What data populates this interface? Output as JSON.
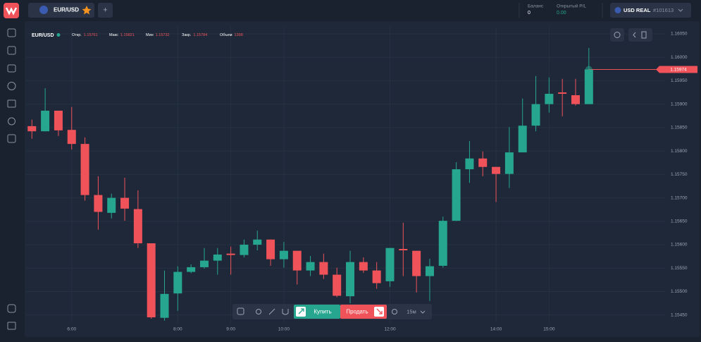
{
  "header": {
    "pair": "EUR/USD",
    "add": "+",
    "balance_label": "Баланс",
    "balance": "0",
    "pl_label": "Открытый P/L",
    "pl": "0.00",
    "currency": "USD REAL",
    "account": "#101613"
  },
  "chart_data": {
    "type": "candlestick",
    "symbol": "EUR/USD",
    "legend": [
      {
        "label": "Откр.",
        "value": "1.15761"
      },
      {
        "label": "Макс",
        "value": "1.15821"
      },
      {
        "label": "Мин",
        "value": "1.15732"
      },
      {
        "label": "Закр.",
        "value": "1.15784"
      },
      {
        "label": "Объем",
        "value": "1398"
      }
    ],
    "x": [
      5.25,
      5.5,
      5.75,
      6,
      6.25,
      6.5,
      6.75,
      7,
      7.25,
      7.5,
      7.75,
      8,
      8.25,
      8.5,
      8.75,
      9,
      9.25,
      9.5,
      9.75,
      10,
      10.25,
      10.5,
      10.75,
      11,
      11.25,
      11.5,
      11.75,
      12,
      12.25,
      12.5,
      12.75,
      13,
      13.25,
      13.5,
      13.75,
      14,
      14.25,
      14.5,
      14.75,
      15,
      15.25,
      15.5,
      15.75
    ],
    "open": [
      1.15853,
      1.15842,
      1.15886,
      1.15845,
      1.15815,
      1.15706,
      1.15668,
      1.157,
      1.15676,
      1.15603,
      1.15444,
      1.15496,
      1.15542,
      1.15552,
      1.15566,
      1.15581,
      1.15578,
      1.156,
      1.15611,
      1.15569,
      1.15587,
      1.15545,
      1.15563,
      1.15536,
      1.1549,
      1.15563,
      1.15545,
      1.15522,
      1.15591,
      1.15587,
      1.15533,
      1.15555,
      1.15651,
      1.15761,
      1.15784,
      1.15766,
      1.15751,
      1.15797,
      1.15854,
      1.159,
      1.15925,
      1.15919,
      1.159
    ],
    "high": [
      1.15867,
      1.15934,
      1.15886,
      1.15894,
      1.15829,
      1.15746,
      1.15709,
      1.15743,
      1.15716,
      1.15603,
      1.15545,
      1.15554,
      1.15558,
      1.15593,
      1.15593,
      1.15596,
      1.15611,
      1.1563,
      1.15611,
      1.15606,
      1.15587,
      1.15576,
      1.15581,
      1.15551,
      1.15587,
      1.15573,
      1.15563,
      1.15593,
      1.15647,
      1.15587,
      1.1557,
      1.1566,
      1.15776,
      1.15821,
      1.15799,
      1.15766,
      1.15851,
      1.15912,
      1.1596,
      1.15957,
      1.15954,
      1.15954,
      1.1602
    ],
    "low": [
      1.15826,
      1.15842,
      1.15832,
      1.15803,
      1.15694,
      1.15632,
      1.15656,
      1.15651,
      1.15593,
      1.15442,
      1.15438,
      1.15459,
      1.15539,
      1.15549,
      1.15536,
      1.15536,
      1.15573,
      1.15588,
      1.15555,
      1.15551,
      1.15515,
      1.15533,
      1.15527,
      1.15488,
      1.15475,
      1.1554,
      1.15506,
      1.1551,
      1.15533,
      1.15498,
      1.1548,
      1.15551,
      1.15651,
      1.15732,
      1.15746,
      1.15691,
      1.15721,
      1.15797,
      1.15842,
      1.15882,
      1.15874,
      1.15897,
      1.159
    ],
    "close": [
      1.15842,
      1.15886,
      1.15844,
      1.15815,
      1.15706,
      1.1567,
      1.157,
      1.15677,
      1.15603,
      1.15445,
      1.15495,
      1.15542,
      1.15552,
      1.15566,
      1.15579,
      1.15578,
      1.156,
      1.15611,
      1.15569,
      1.15587,
      1.15545,
      1.15563,
      1.15536,
      1.15491,
      1.15563,
      1.15545,
      1.15518,
      1.15593,
      1.15588,
      1.15533,
      1.15554,
      1.15651,
      1.15761,
      1.15784,
      1.15766,
      1.15751,
      1.15797,
      1.15854,
      1.159,
      1.15922,
      1.15922,
      1.159,
      1.15974
    ],
    "up_color": "#26a68f",
    "down_color": "#f0525a",
    "xlim": [
      5.14,
      17.2
    ],
    "xticks": [
      {
        "value": 6,
        "label": "6:00"
      },
      {
        "value": 8,
        "label": "8:00"
      },
      {
        "value": 9,
        "label": "9:00"
      },
      {
        "value": 10,
        "label": "10:00"
      },
      {
        "value": 12,
        "label": "12:00"
      },
      {
        "value": 14,
        "label": "14:00"
      },
      {
        "value": 15,
        "label": "15:00"
      }
    ],
    "ylim": [
      1.15433,
      1.16065
    ],
    "yticks": [
      {
        "value": 1.1605,
        "label": "1.16050"
      },
      {
        "value": 1.16,
        "label": "1.16000"
      },
      {
        "value": 1.1595,
        "label": "1.15950"
      },
      {
        "value": 1.159,
        "label": "1.15900"
      },
      {
        "value": 1.1585,
        "label": "1.15850"
      },
      {
        "value": 1.158,
        "label": "1.15800"
      },
      {
        "value": 1.1575,
        "label": "1.15750"
      },
      {
        "value": 1.157,
        "label": "1.15700"
      },
      {
        "value": 1.1565,
        "label": "1.15650"
      },
      {
        "value": 1.156,
        "label": "1.15600"
      },
      {
        "value": 1.1555,
        "label": "1.15550"
      },
      {
        "value": 1.155,
        "label": "1.15500"
      },
      {
        "value": 1.1545,
        "label": "1.15450"
      }
    ],
    "grid": true,
    "last_price": 1.15974
  },
  "toolbar": {
    "buy": "Купить",
    "sell": "Продать",
    "timeframe": "15м"
  }
}
